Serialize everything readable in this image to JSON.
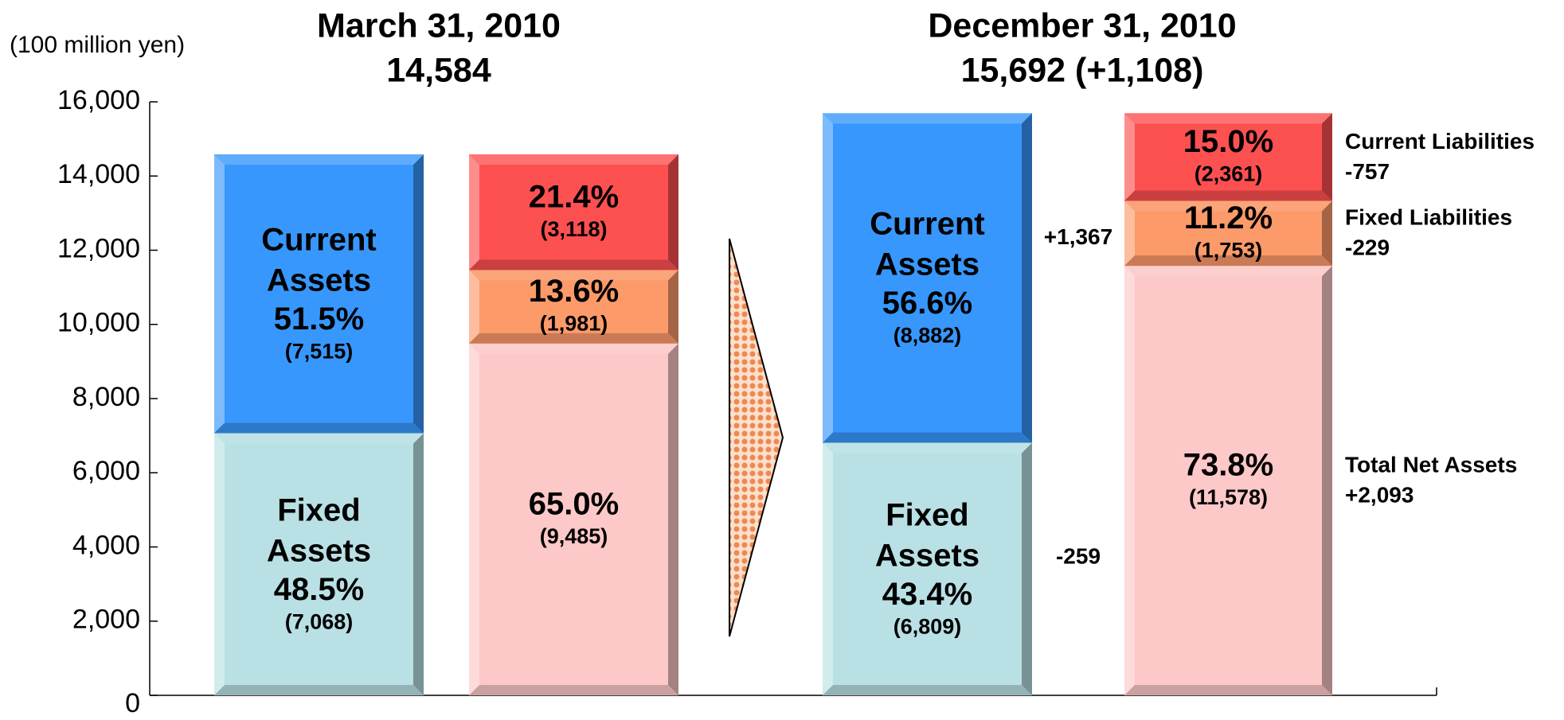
{
  "chart_data": {
    "type": "stacked_bar",
    "unit_label": "(100 million yen)",
    "ylim": [
      0,
      16000
    ],
    "yticks": [
      0,
      {
        "value": 2000,
        "label": "2,000"
      },
      {
        "value": 4000,
        "label": "4,000"
      },
      {
        "value": 6000,
        "label": "6,000"
      },
      {
        "value": 8000,
        "label": "8,000"
      },
      {
        "value": 10000,
        "label": "10,000"
      },
      {
        "value": 12000,
        "label": "12,000"
      },
      {
        "value": 14000,
        "label": "14,000"
      },
      {
        "value": 16000,
        "label": "16,000"
      }
    ],
    "groups": [
      {
        "title": "March 31, 2010",
        "subtitle": "14,584"
      },
      {
        "title": "December 31, 2010",
        "subtitle": "15,692 (+1,108)"
      }
    ],
    "bars": [
      {
        "segments": [
          {
            "name": "Fixed Assets",
            "value": 7068,
            "value_label": "(7,068)",
            "share_label": "48.5%",
            "color": "#b9e0e4"
          },
          {
            "name": "Current Assets",
            "value": 7515,
            "value_label": "(7,515)",
            "share_label": "51.5%",
            "color": "#3797fc"
          }
        ]
      },
      {
        "segments": [
          {
            "value": 9485,
            "value_label": "(9,485)",
            "share_label": "65.0%",
            "color": "#fdc8c8"
          },
          {
            "value": 1981,
            "value_label": "(1,981)",
            "share_label": "13.6%",
            "color": "#fc9a6a"
          },
          {
            "value": 3118,
            "value_label": "(3,118)",
            "share_label": "21.4%",
            "color": "#fd5050"
          }
        ]
      },
      {
        "segments": [
          {
            "name": "Fixed Assets",
            "value": 6809,
            "value_label": "(6,809)",
            "share_label": "43.4%",
            "color": "#b9e0e4",
            "change": "-259"
          },
          {
            "name": "Current Assets",
            "value": 8882,
            "value_label": "(8,882)",
            "share_label": "56.6%",
            "color": "#3797fc",
            "change": "+1,367"
          }
        ]
      },
      {
        "segments": [
          {
            "side_name": "Total Net Assets",
            "value": 11578,
            "value_label": "(11,578)",
            "share_label": "73.8%",
            "color": "#fdc8c8",
            "change": "+2,093"
          },
          {
            "side_name": "Fixed Liabilities",
            "value": 1753,
            "value_label": "(1,753)",
            "share_label": "11.2%",
            "color": "#fc9a6a",
            "change": "-229"
          },
          {
            "side_name": "Current Liabilities",
            "value": 2361,
            "value_label": "(2,361)",
            "share_label": "15.0%",
            "color": "#fd5050",
            "change": "-757"
          }
        ]
      }
    ]
  }
}
